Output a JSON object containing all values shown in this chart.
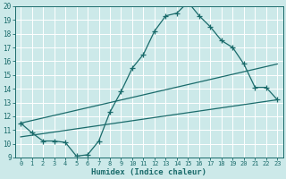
{
  "title": "",
  "xlabel": "Humidex (Indice chaleur)",
  "xlim": [
    -0.5,
    23.5
  ],
  "ylim": [
    9,
    20
  ],
  "xticks": [
    0,
    1,
    2,
    3,
    4,
    5,
    6,
    7,
    8,
    9,
    10,
    11,
    12,
    13,
    14,
    15,
    16,
    17,
    18,
    19,
    20,
    21,
    22,
    23
  ],
  "yticks": [
    9,
    10,
    11,
    12,
    13,
    14,
    15,
    16,
    17,
    18,
    19,
    20
  ],
  "bg_color": "#cce9e9",
  "line_color": "#1a6b6b",
  "grid_color": "#ffffff",
  "line1_x": [
    0,
    1,
    2,
    3,
    4,
    5,
    6,
    7,
    8,
    9,
    10,
    11,
    12,
    13,
    14,
    15,
    16,
    17,
    18,
    19,
    20,
    21,
    22,
    23
  ],
  "line1_y": [
    11.5,
    10.8,
    10.2,
    10.2,
    10.1,
    9.1,
    9.2,
    10.2,
    12.3,
    13.8,
    15.5,
    16.5,
    18.2,
    19.3,
    19.5,
    20.3,
    19.3,
    18.5,
    17.5,
    17.0,
    15.8,
    14.1,
    14.1,
    13.2
  ],
  "line2_x": [
    0,
    23
  ],
  "line2_y": [
    10.5,
    13.2
  ],
  "line3_x": [
    0,
    23
  ],
  "line3_y": [
    11.5,
    15.8
  ]
}
